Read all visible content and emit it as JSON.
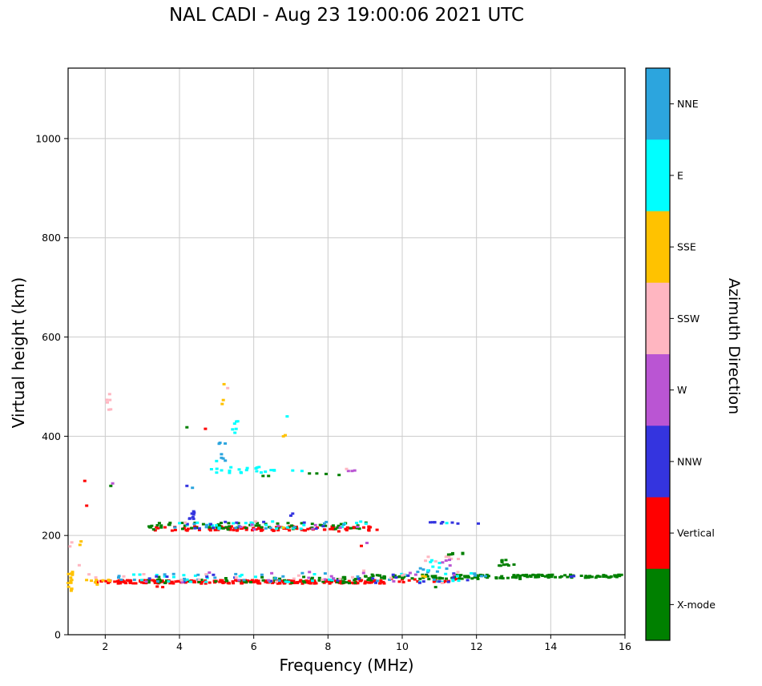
{
  "title": "NAL CADI - Aug 23 19:00:06 2021 UTC",
  "axes": {
    "xlabel": "Frequency (MHz)",
    "ylabel": "Virtual height (km)",
    "x_ticks": [
      2,
      4,
      6,
      8,
      10,
      12,
      14,
      16
    ],
    "y_ticks": [
      0,
      200,
      400,
      600,
      800,
      1000
    ],
    "grid": true
  },
  "colorbar": {
    "label": "Azimuth Direction",
    "entries": [
      {
        "label": "NNE",
        "color": "#2CA5DE"
      },
      {
        "label": "E",
        "color": "#00FFFF"
      },
      {
        "label": "SSE",
        "color": "#FFC200"
      },
      {
        "label": "SSW",
        "color": "#FFB6C1"
      },
      {
        "label": "W",
        "color": "#BA55D3"
      },
      {
        "label": "NNW",
        "color": "#3434DF"
      },
      {
        "label": "Vertical",
        "color": "#FF0000"
      },
      {
        "label": "X-mode",
        "color": "#008000"
      }
    ]
  },
  "chart_data": {
    "type": "scatter",
    "title": "NAL CADI - Aug 23 19:00:06 2021 UTC",
    "xlabel": "Frequency (MHz)",
    "ylabel": "Virtual height (km)",
    "xlim": [
      1,
      16
    ],
    "ylim": [
      0,
      1142
    ],
    "legend_position": "right-colorbar",
    "marker": {
      "w": 4,
      "h": 3
    },
    "bands": [
      {
        "s": "Vertical",
        "f": [
          1.75,
          9.6
        ],
        "h": [
          103,
          110
        ],
        "n": 230
      },
      {
        "s": "Vertical",
        "f": [
          9.6,
          11.6
        ],
        "h": [
          105,
          114
        ],
        "n": 14
      },
      {
        "s": "X-mode",
        "f": [
          3.0,
          9.2
        ],
        "h": [
          104,
          117
        ],
        "n": 55
      },
      {
        "s": "X-mode",
        "f": [
          9.0,
          13.2
        ],
        "h": [
          112,
          121
        ],
        "n": 80
      },
      {
        "s": "X-mode",
        "f": [
          13.0,
          16.0
        ],
        "h": [
          115,
          121
        ],
        "n": 70
      },
      {
        "s": "E",
        "f": [
          2.0,
          12.1
        ],
        "h": [
          106,
          124
        ],
        "n": 38
      },
      {
        "s": "NNE",
        "f": [
          2.2,
          12.3
        ],
        "h": [
          107,
          127
        ],
        "n": 26
      },
      {
        "s": "NNW",
        "f": [
          3.0,
          12.0
        ],
        "h": [
          104,
          124
        ],
        "n": 22
      },
      {
        "s": "W",
        "f": [
          2.2,
          11.5
        ],
        "h": [
          105,
          127
        ],
        "n": 16
      },
      {
        "s": "SSW",
        "f": [
          1.45,
          11.5
        ],
        "h": [
          103,
          130
        ],
        "n": 20
      },
      {
        "s": "SSE",
        "f": [
          1.3,
          2.3
        ],
        "h": [
          100,
          120
        ],
        "n": 8
      },
      {
        "s": "Vertical",
        "f": [
          3.3,
          9.35
        ],
        "h": [
          208,
          219
        ],
        "n": 95
      },
      {
        "s": "X-mode",
        "f": [
          3.15,
          9.3
        ],
        "h": [
          212,
          226
        ],
        "n": 70
      },
      {
        "s": "E",
        "f": [
          3.9,
          9.3
        ],
        "h": [
          213,
          229
        ],
        "n": 26
      },
      {
        "s": "NNE",
        "f": [
          3.6,
          9.0
        ],
        "h": [
          214,
          228
        ],
        "n": 12
      },
      {
        "s": "NNW",
        "f": [
          3.6,
          9.0
        ],
        "h": [
          212,
          228
        ],
        "n": 12
      },
      {
        "s": "W",
        "f": [
          4.2,
          8.8
        ],
        "h": [
          212,
          230
        ],
        "n": 8
      },
      {
        "s": "E",
        "f": [
          4.85,
          6.6
        ],
        "h": [
          326,
          338
        ],
        "n": 20
      },
      {
        "s": "SSW",
        "f": [
          10.6,
          11.55
        ],
        "h": [
          140,
          158
        ],
        "n": 8
      },
      {
        "s": "NNE",
        "f": [
          10.45,
          11.2
        ],
        "h": [
          125,
          136
        ],
        "n": 6
      },
      {
        "s": "X-mode",
        "f": [
          11.2,
          11.65
        ],
        "h": [
          152,
          165
        ],
        "n": 6
      },
      {
        "s": "E",
        "f": [
          10.6,
          11.5
        ],
        "h": [
          128,
          150
        ],
        "n": 6
      },
      {
        "s": "W",
        "f": [
          10.7,
          11.3
        ],
        "h": [
          138,
          152
        ],
        "n": 4
      },
      {
        "s": "NNW",
        "f": [
          10.75,
          11.1
        ],
        "h": [
          223,
          229
        ],
        "n": 6
      },
      {
        "s": "X-mode",
        "f": [
          12.55,
          13.15
        ],
        "h": [
          139,
          151
        ],
        "n": 10
      },
      {
        "s": "NNE",
        "f": [
          11.9,
          12.3
        ],
        "h": [
          117,
          125
        ],
        "n": 5
      },
      {
        "s": "NNW",
        "f": [
          4.25,
          4.45
        ],
        "h": [
          233,
          262
        ],
        "n": 8
      },
      {
        "s": "SSE",
        "f": [
          1.0,
          1.12
        ],
        "h": [
          88,
          132
        ],
        "n": 14
      },
      {
        "s": "NNE",
        "f": [
          5.02,
          5.25
        ],
        "h": [
          338,
          396
        ],
        "n": 7
      },
      {
        "s": "E",
        "f": [
          5.42,
          5.6
        ],
        "h": [
          393,
          432
        ],
        "n": 6
      },
      {
        "s": "SSW",
        "f": [
          2.04,
          2.17
        ],
        "h": [
          445,
          490
        ],
        "n": 6
      }
    ],
    "points": [
      [
        "SSW",
        1.3,
        140
      ],
      [
        "SSW",
        1.05,
        178
      ],
      [
        "SSW",
        1.1,
        186
      ],
      [
        "SSE",
        1.35,
        188
      ],
      [
        "SSE",
        1.32,
        181
      ],
      [
        "Vertical",
        1.45,
        310
      ],
      [
        "Vertical",
        1.5,
        260
      ],
      [
        "W",
        2.2,
        305
      ],
      [
        "X-mode",
        2.15,
        300
      ],
      [
        "NNW",
        4.2,
        300
      ],
      [
        "NNE",
        4.35,
        296
      ],
      [
        "Vertical",
        4.7,
        415
      ],
      [
        "X-mode",
        4.2,
        418
      ],
      [
        "E",
        5.0,
        350
      ],
      [
        "SSE",
        5.2,
        505
      ],
      [
        "SSE",
        5.15,
        465
      ],
      [
        "SSE",
        5.18,
        473
      ],
      [
        "SSW",
        5.3,
        497
      ],
      [
        "E",
        6.9,
        440
      ],
      [
        "SSE",
        6.8,
        400
      ],
      [
        "SSE",
        6.85,
        402
      ],
      [
        "X-mode",
        6.25,
        320
      ],
      [
        "X-mode",
        6.4,
        320
      ],
      [
        "E",
        6.55,
        332
      ],
      [
        "X-mode",
        7.5,
        325
      ],
      [
        "X-mode",
        7.7,
        325
      ],
      [
        "X-mode",
        7.95,
        324
      ],
      [
        "X-mode",
        8.3,
        322
      ],
      [
        "E",
        7.05,
        331
      ],
      [
        "E",
        7.3,
        330
      ],
      [
        "W",
        8.55,
        330
      ],
      [
        "W",
        8.65,
        330
      ],
      [
        "W",
        8.72,
        331
      ],
      [
        "SSW",
        8.5,
        334
      ],
      [
        "W",
        9.05,
        185
      ],
      [
        "Vertical",
        8.9,
        179
      ],
      [
        "NNW",
        11.35,
        226
      ],
      [
        "NNW",
        11.5,
        224
      ],
      [
        "E",
        11.2,
        225
      ],
      [
        "NNW",
        12.05,
        224
      ],
      [
        "X-mode",
        10.9,
        96
      ],
      [
        "SSE",
        10.55,
        118
      ],
      [
        "SSE",
        10.62,
        117
      ],
      [
        "NNW",
        7.0,
        240
      ],
      [
        "NNW",
        7.05,
        244
      ],
      [
        "SSE",
        6.8,
        216
      ],
      [
        "SSW",
        4.15,
        226
      ],
      [
        "SSW",
        6.05,
        228
      ],
      [
        "Vertical",
        3.4,
        97
      ],
      [
        "Vertical",
        3.55,
        96
      ],
      [
        "NNW",
        14.55,
        117
      ],
      [
        "NNW",
        14.62,
        118
      ]
    ]
  }
}
